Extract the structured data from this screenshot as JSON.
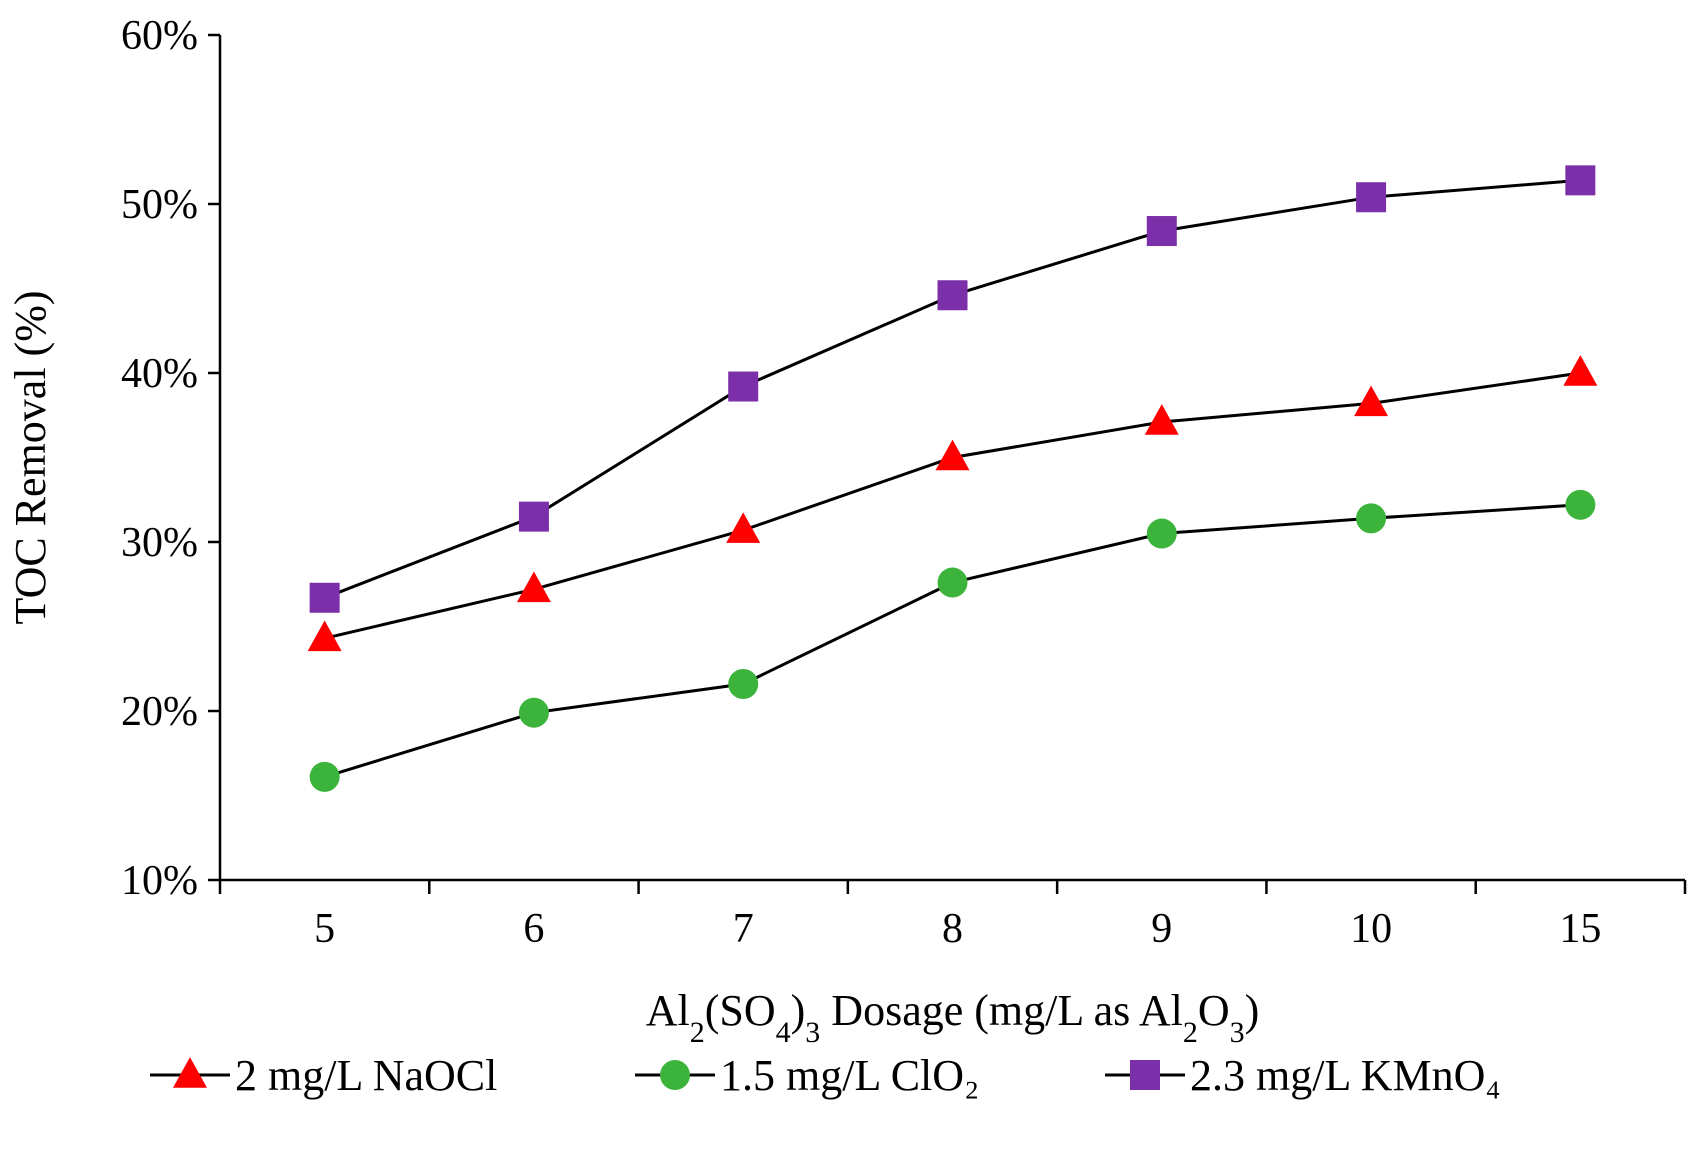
{
  "chart_data": {
    "type": "line",
    "title": "",
    "categories": [
      "5",
      "6",
      "7",
      "8",
      "9",
      "10",
      "15"
    ],
    "xlabel": "Al2(SO4)3 Dosage (mg/L as Al2O3)",
    "xlabel_parts": [
      {
        "text": "Al",
        "sub": false
      },
      {
        "text": "2",
        "sub": true
      },
      {
        "text": "(SO",
        "sub": false
      },
      {
        "text": "4",
        "sub": true
      },
      {
        "text": ")",
        "sub": false
      },
      {
        "text": "3",
        "sub": true
      },
      {
        "text": " Dosage (mg/L as Al",
        "sub": false
      },
      {
        "text": "2",
        "sub": true
      },
      {
        "text": "O",
        "sub": false
      },
      {
        "text": "3",
        "sub": true
      },
      {
        "text": ")",
        "sub": false
      }
    ],
    "ylabel": "TOC Removal (%)",
    "ylim": [
      0.1,
      0.6
    ],
    "yticks": [
      0.1,
      0.2,
      0.3,
      0.4,
      0.5,
      0.6
    ],
    "ytick_labels": [
      "10%",
      "20%",
      "30%",
      "40%",
      "50%",
      "60%"
    ],
    "grid": false,
    "legend_position": "bottom",
    "series": [
      {
        "name": "2 mg/L NaOCl",
        "marker": "triangle",
        "color": "#ff0000",
        "values": [
          0.243,
          0.272,
          0.307,
          0.35,
          0.371,
          0.382,
          0.4
        ]
      },
      {
        "name": "1.5 mg/L ClO₂",
        "marker": "circle",
        "color": "#3cb43c",
        "values": [
          0.161,
          0.199,
          0.216,
          0.276,
          0.305,
          0.314,
          0.322
        ]
      },
      {
        "name": "2.3 mg/L KMnO₄",
        "marker": "square",
        "color": "#7b2fa8",
        "values": [
          0.267,
          0.315,
          0.392,
          0.446,
          0.484,
          0.504,
          0.514
        ]
      }
    ]
  }
}
